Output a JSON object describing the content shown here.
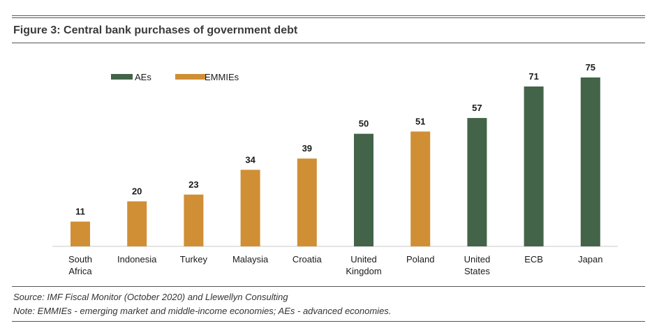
{
  "figure": {
    "title": "Figure 3: Central bank purchases of government debt"
  },
  "chart_data": {
    "type": "bar",
    "title": "Figure 3: Central bank purchases of government debt",
    "xlabel": "",
    "ylabel": "",
    "ylim": [
      0,
      75
    ],
    "grid": false,
    "legend_position": "top-left",
    "legend": [
      {
        "name": "AEs",
        "color": "#436449"
      },
      {
        "name": "EMMIEs",
        "color": "#D08F35"
      }
    ],
    "categories": [
      [
        "South",
        "Africa"
      ],
      [
        "Indonesia"
      ],
      [
        "Turkey"
      ],
      [
        "Malaysia"
      ],
      [
        "Croatia"
      ],
      [
        "United",
        "Kingdom"
      ],
      [
        "Poland"
      ],
      [
        "United",
        "States"
      ],
      [
        "ECB"
      ],
      [
        "Japan"
      ]
    ],
    "values": [
      11,
      20,
      23,
      34,
      39,
      50,
      51,
      57,
      71,
      75
    ],
    "groups": [
      "EMMIEs",
      "EMMIEs",
      "EMMIEs",
      "EMMIEs",
      "EMMIEs",
      "AEs",
      "EMMIEs",
      "AEs",
      "AEs",
      "AEs"
    ]
  },
  "footer": {
    "source": "Source: IMF Fiscal Monitor (October 2020)  and Llewellyn Consulting",
    "note": "Note: EMMIEs - emerging market and middle-income economies; AEs - advanced economies."
  }
}
